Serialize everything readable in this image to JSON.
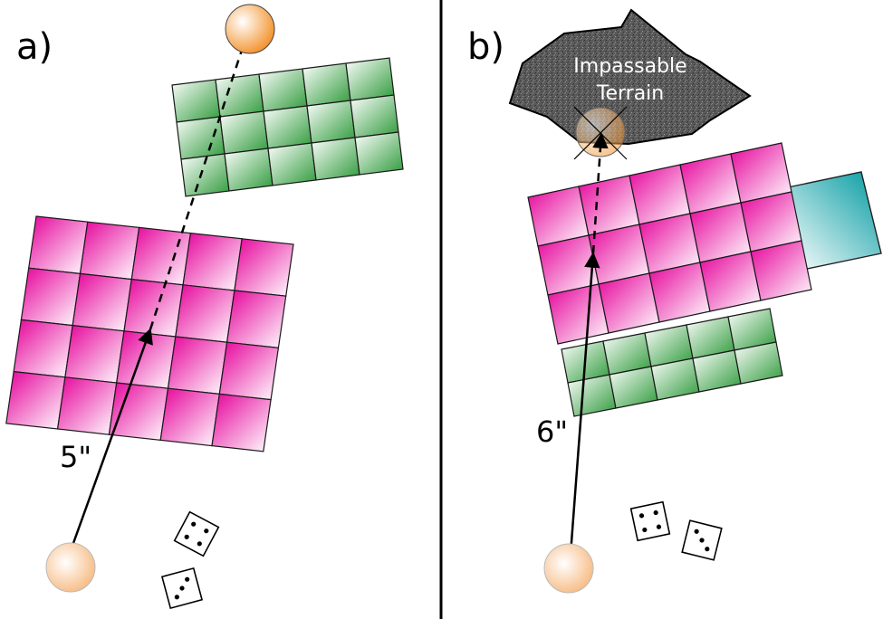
{
  "panels": {
    "a": {
      "label": "a)",
      "distance": "5\""
    },
    "b": {
      "label": "b)",
      "distance": "6\"",
      "terrain_label_line1": "Impassable",
      "terrain_label_line2": "Terrain"
    }
  },
  "colors": {
    "magenta": "#e6009a",
    "green": "#2e9a3a",
    "teal": "#009aa0",
    "model_orange": "#f28a1e",
    "terrain": "#555555"
  },
  "dice": {
    "panel_a": [
      4,
      3
    ],
    "panel_b": [
      4,
      3
    ]
  }
}
